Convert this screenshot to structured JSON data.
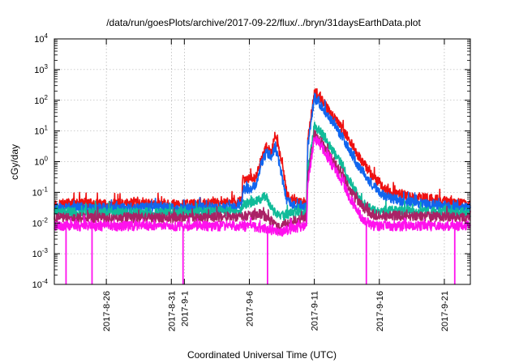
{
  "chart_data": {
    "type": "line",
    "title": "/data/run/goesPlots/archive/2017-09-22/flux/../bryn/31daysEarthData.plot",
    "xlabel": "Coordinated Universal Time (UTC)",
    "ylabel": "cGy/day",
    "y_scale": "log",
    "ylim": [
      0.0001,
      10000
    ],
    "xlim": [
      "2017-08-22",
      "2017-09-23"
    ],
    "grid": true,
    "y_ticks": [
      {
        "value": 0.0001,
        "base": "10",
        "exp": "-4"
      },
      {
        "value": 0.001,
        "base": "10",
        "exp": "-3"
      },
      {
        "value": 0.01,
        "base": "10",
        "exp": "-2"
      },
      {
        "value": 0.1,
        "base": "10",
        "exp": "-1"
      },
      {
        "value": 1,
        "base": "10",
        "exp": "0"
      },
      {
        "value": 10,
        "base": "10",
        "exp": "1"
      },
      {
        "value": 100,
        "base": "10",
        "exp": "2"
      },
      {
        "value": 1000,
        "base": "10",
        "exp": "3"
      },
      {
        "value": 10000,
        "base": "10",
        "exp": "4"
      }
    ],
    "x_ticks": [
      {
        "date": "2017-08-26",
        "label": "2017-8-26"
      },
      {
        "date": "2017-08-31",
        "label": "2017-8-31"
      },
      {
        "date": "2017-09-01",
        "label": "2017-9-1"
      },
      {
        "date": "2017-09-06",
        "label": "2017-9-6"
      },
      {
        "date": "2017-09-11",
        "label": "2017-9-11"
      },
      {
        "date": "2017-09-16",
        "label": "2017-9-16"
      },
      {
        "date": "2017-09-21",
        "label": "2017-9-21"
      }
    ],
    "series": [
      {
        "color": "#ee1111",
        "values": [
          [
            "2017-08-22",
            0.04
          ],
          [
            "2017-08-24",
            0.045
          ],
          [
            "2017-08-26",
            0.04
          ],
          [
            "2017-08-29",
            0.045
          ],
          [
            "2017-09-01",
            0.04
          ],
          [
            "2017-09-04",
            0.045
          ],
          [
            "2017-09-05.4",
            0.05
          ],
          [
            "2017-09-05.5",
            0.25
          ],
          [
            "2017-09-06.5",
            0.3
          ],
          [
            "2017-09-06.9",
            1.0
          ],
          [
            "2017-09-07.3",
            3.0
          ],
          [
            "2017-09-07.7",
            2.0
          ],
          [
            "2017-09-08.0",
            8.0
          ],
          [
            "2017-09-08.3",
            2.0
          ],
          [
            "2017-09-08.6",
            0.5
          ],
          [
            "2017-09-08.9",
            0.08
          ],
          [
            "2017-09-09.5",
            0.05
          ],
          [
            "2017-09-10.4",
            0.05
          ],
          [
            "2017-09-10.5",
            5.0
          ],
          [
            "2017-09-11.0",
            180
          ],
          [
            "2017-09-11.6",
            100
          ],
          [
            "2017-09-12.2",
            40
          ],
          [
            "2017-09-13.0",
            15
          ],
          [
            "2017-09-13.6",
            6.0
          ],
          [
            "2017-09-14.2",
            2.0
          ],
          [
            "2017-09-14.8",
            0.8
          ],
          [
            "2017-09-15.6",
            0.3
          ],
          [
            "2017-09-16.5",
            0.12
          ],
          [
            "2017-09-18.0",
            0.08
          ],
          [
            "2017-09-20.0",
            0.06
          ],
          [
            "2017-09-23",
            0.04
          ]
        ]
      },
      {
        "color": "#1166ee",
        "values": [
          [
            "2017-08-22",
            0.03
          ],
          [
            "2017-08-24",
            0.032
          ],
          [
            "2017-08-26",
            0.03
          ],
          [
            "2017-08-29",
            0.032
          ],
          [
            "2017-09-01",
            0.03
          ],
          [
            "2017-09-04",
            0.032
          ],
          [
            "2017-09-05.4",
            0.035
          ],
          [
            "2017-09-05.5",
            0.12
          ],
          [
            "2017-09-06.5",
            0.15
          ],
          [
            "2017-09-06.9",
            0.8
          ],
          [
            "2017-09-07.3",
            2.0
          ],
          [
            "2017-09-07.7",
            1.5
          ],
          [
            "2017-09-08.0",
            3.0
          ],
          [
            "2017-09-08.3",
            1.0
          ],
          [
            "2017-09-08.6",
            0.2
          ],
          [
            "2017-09-08.9",
            0.05
          ],
          [
            "2017-09-09.5",
            0.035
          ],
          [
            "2017-09-10.4",
            0.035
          ],
          [
            "2017-09-10.5",
            3.0
          ],
          [
            "2017-09-11.0",
            120
          ],
          [
            "2017-09-11.6",
            60
          ],
          [
            "2017-09-12.2",
            25
          ],
          [
            "2017-09-13.0",
            8.0
          ],
          [
            "2017-09-13.6",
            3.0
          ],
          [
            "2017-09-14.2",
            1.0
          ],
          [
            "2017-09-14.8",
            0.4
          ],
          [
            "2017-09-15.6",
            0.15
          ],
          [
            "2017-09-16.5",
            0.07
          ],
          [
            "2017-09-18.0",
            0.05
          ],
          [
            "2017-09-20.0",
            0.04
          ],
          [
            "2017-09-23",
            0.03
          ]
        ]
      },
      {
        "color": "#11bb99",
        "values": [
          [
            "2017-08-22",
            0.022
          ],
          [
            "2017-08-26",
            0.022
          ],
          [
            "2017-09-01",
            0.022
          ],
          [
            "2017-09-05.4",
            0.025
          ],
          [
            "2017-09-05.5",
            0.04
          ],
          [
            "2017-09-06.9",
            0.06
          ],
          [
            "2017-09-07.3",
            0.08
          ],
          [
            "2017-09-07.7",
            0.03
          ],
          [
            "2017-09-08.3",
            0.015
          ],
          [
            "2017-09-08.9",
            0.02
          ],
          [
            "2017-09-10.4",
            0.022
          ],
          [
            "2017-09-10.5",
            0.5
          ],
          [
            "2017-09-11.0",
            15
          ],
          [
            "2017-09-11.6",
            8.0
          ],
          [
            "2017-09-12.2",
            3.0
          ],
          [
            "2017-09-13.0",
            1.0
          ],
          [
            "2017-09-13.6",
            0.3
          ],
          [
            "2017-09-14.2",
            0.1
          ],
          [
            "2017-09-14.8",
            0.04
          ],
          [
            "2017-09-15.6",
            0.025
          ],
          [
            "2017-09-16.5",
            0.025
          ],
          [
            "2017-09-20.0",
            0.023
          ],
          [
            "2017-09-23",
            0.022
          ]
        ]
      },
      {
        "color": "#aa2266",
        "values": [
          [
            "2017-08-22",
            0.015
          ],
          [
            "2017-08-26",
            0.015
          ],
          [
            "2017-09-01",
            0.015
          ],
          [
            "2017-09-05.4",
            0.016
          ],
          [
            "2017-09-06.9",
            0.02
          ],
          [
            "2017-09-07.7",
            0.012
          ],
          [
            "2017-09-08.3",
            0.006
          ],
          [
            "2017-09-08.9",
            0.01
          ],
          [
            "2017-09-10.4",
            0.015
          ],
          [
            "2017-09-10.5",
            0.3
          ],
          [
            "2017-09-11.0",
            8.0
          ],
          [
            "2017-09-11.6",
            4.0
          ],
          [
            "2017-09-12.2",
            1.5
          ],
          [
            "2017-09-13.0",
            0.5
          ],
          [
            "2017-09-13.6",
            0.15
          ],
          [
            "2017-09-14.2",
            0.06
          ],
          [
            "2017-09-14.8",
            0.03
          ],
          [
            "2017-09-15.6",
            0.018
          ],
          [
            "2017-09-20.0",
            0.016
          ],
          [
            "2017-09-23",
            0.015
          ]
        ]
      },
      {
        "color": "#ff11ee",
        "values": [
          [
            "2017-08-22",
            0.008
          ],
          [
            "2017-08-26",
            0.008
          ],
          [
            "2017-09-01",
            0.008
          ],
          [
            "2017-09-05.4",
            0.008
          ],
          [
            "2017-09-06.9",
            0.007
          ],
          [
            "2017-09-07.7",
            0.006
          ],
          [
            "2017-09-08.3",
            0.005
          ],
          [
            "2017-09-08.9",
            0.006
          ],
          [
            "2017-09-10.4",
            0.008
          ],
          [
            "2017-09-10.5",
            0.2
          ],
          [
            "2017-09-11.0",
            6.0
          ],
          [
            "2017-09-11.6",
            3.0
          ],
          [
            "2017-09-12.2",
            1.0
          ],
          [
            "2017-09-13.0",
            0.3
          ],
          [
            "2017-09-13.6",
            0.08
          ],
          [
            "2017-09-14.2",
            0.03
          ],
          [
            "2017-09-14.8",
            0.012
          ],
          [
            "2017-09-15.6",
            0.008
          ],
          [
            "2017-09-20.0",
            0.008
          ],
          [
            "2017-09-23",
            0.008
          ]
        ]
      }
    ],
    "dropouts": [
      "2017-08-22.9",
      "2017-08-24.9",
      "2017-08-31.9",
      "2017-09-07.4",
      "2017-09-15.0",
      "2017-09-21.8"
    ]
  }
}
